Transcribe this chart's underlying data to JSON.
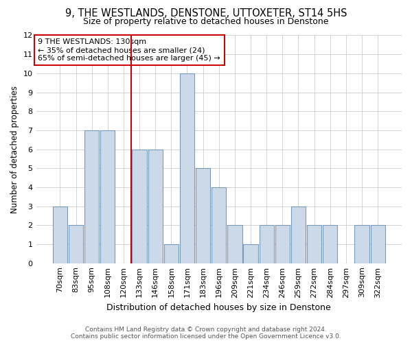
{
  "title": "9, THE WESTLANDS, DENSTONE, UTTOXETER, ST14 5HS",
  "subtitle": "Size of property relative to detached houses in Denstone",
  "xlabel": "Distribution of detached houses by size in Denstone",
  "ylabel": "Number of detached properties",
  "footer_line1": "Contains HM Land Registry data © Crown copyright and database right 2024.",
  "footer_line2": "Contains public sector information licensed under the Open Government Licence v3.0.",
  "annotation_line1": "9 THE WESTLANDS: 130sqm",
  "annotation_line2": "← 35% of detached houses are smaller (24)",
  "annotation_line3": "65% of semi-detached houses are larger (45) →",
  "categories": [
    "70sqm",
    "83sqm",
    "95sqm",
    "108sqm",
    "120sqm",
    "133sqm",
    "146sqm",
    "158sqm",
    "171sqm",
    "183sqm",
    "196sqm",
    "209sqm",
    "221sqm",
    "234sqm",
    "246sqm",
    "259sqm",
    "272sqm",
    "284sqm",
    "297sqm",
    "309sqm",
    "322sqm"
  ],
  "values": [
    3,
    2,
    7,
    7,
    0,
    6,
    6,
    1,
    10,
    5,
    4,
    2,
    1,
    2,
    2,
    3,
    2,
    2,
    0,
    2,
    2
  ],
  "bar_color": "#ccd9e8",
  "bar_edge_color": "#7799bb",
  "red_line_color": "#cc0000",
  "background_color": "#ffffff",
  "grid_color": "#cccccc",
  "ylim": [
    0,
    12
  ],
  "yticks": [
    0,
    1,
    2,
    3,
    4,
    5,
    6,
    7,
    8,
    9,
    10,
    11,
    12
  ],
  "title_fontsize": 10.5,
  "subtitle_fontsize": 9,
  "ylabel_fontsize": 8.5,
  "xlabel_fontsize": 9,
  "tick_fontsize": 8,
  "annotation_fontsize": 8,
  "footer_fontsize": 6.5
}
